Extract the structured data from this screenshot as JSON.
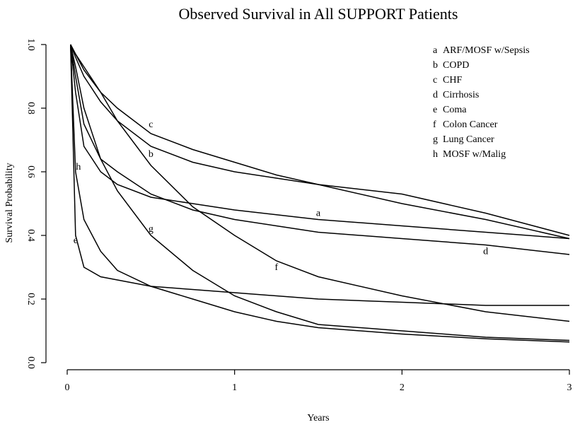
{
  "chart_data": {
    "type": "line",
    "title": "Observed Survival in All SUPPORT Patients",
    "x_label": "Years",
    "y_label": "Survival Probability",
    "x": [
      0.02,
      0.05,
      0.1,
      0.2,
      0.3,
      0.5,
      0.75,
      1,
      1.25,
      1.5,
      2,
      2.5,
      3
    ],
    "series": [
      {
        "letter": "a",
        "name": "ARF/MOSF w/Sepsis",
        "color": "#000000",
        "values": [
          1.0,
          0.85,
          0.68,
          0.6,
          0.56,
          0.52,
          0.5,
          0.48,
          0.465,
          0.45,
          0.43,
          0.41,
          0.39
        ]
      },
      {
        "letter": "b",
        "name": "COPD",
        "color": "#000000",
        "values": [
          1.0,
          0.96,
          0.9,
          0.82,
          0.76,
          0.68,
          0.63,
          0.6,
          0.58,
          0.56,
          0.5,
          0.45,
          0.39
        ]
      },
      {
        "letter": "c",
        "name": "CHF",
        "color": "#000000",
        "values": [
          1.0,
          0.97,
          0.92,
          0.85,
          0.8,
          0.72,
          0.67,
          0.63,
          0.59,
          0.56,
          0.53,
          0.47,
          0.4
        ]
      },
      {
        "letter": "d",
        "name": "Cirrhosis",
        "color": "#000000",
        "values": [
          1.0,
          0.9,
          0.75,
          0.64,
          0.6,
          0.53,
          0.48,
          0.45,
          0.43,
          0.41,
          0.39,
          0.37,
          0.34
        ]
      },
      {
        "letter": "e",
        "name": "Coma",
        "color": "#000000",
        "values": [
          1.0,
          0.4,
          0.3,
          0.27,
          0.26,
          0.24,
          0.23,
          0.22,
          0.21,
          0.2,
          0.19,
          0.18,
          0.18
        ]
      },
      {
        "letter": "f",
        "name": "Colon Cancer",
        "color": "#000000",
        "values": [
          1.0,
          0.97,
          0.93,
          0.85,
          0.76,
          0.62,
          0.49,
          0.4,
          0.32,
          0.27,
          0.21,
          0.16,
          0.13
        ]
      },
      {
        "letter": "g",
        "name": "Lung Cancer",
        "color": "#000000",
        "values": [
          1.0,
          0.93,
          0.8,
          0.64,
          0.54,
          0.4,
          0.29,
          0.21,
          0.16,
          0.12,
          0.1,
          0.08,
          0.07
        ]
      },
      {
        "letter": "h",
        "name": "MOSF w/Malig",
        "color": "#000000",
        "values": [
          1.0,
          0.6,
          0.45,
          0.35,
          0.29,
          0.24,
          0.2,
          0.16,
          0.13,
          0.11,
          0.09,
          0.075,
          0.065
        ]
      }
    ],
    "xlim": [
      0,
      3
    ],
    "xticks": [
      0,
      1,
      2,
      3
    ],
    "ylim": [
      0,
      1
    ],
    "yticks": [
      {
        "value": 0,
        "label": "0.0"
      },
      0.2,
      0.4,
      0.6,
      0.8,
      {
        "value": 1,
        "label": "1.0"
      }
    ],
    "legend": "top-right"
  }
}
